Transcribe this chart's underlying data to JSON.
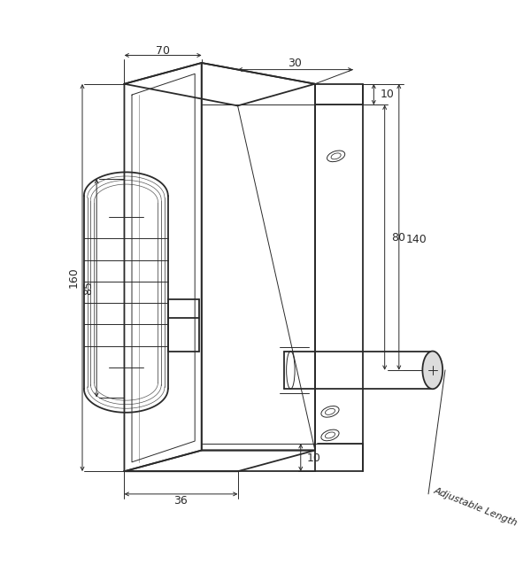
{
  "bg_color": "#ffffff",
  "line_color": "#2a2a2a",
  "dim_color": "#2a2a2a",
  "fig_width": 6.0,
  "fig_height": 6.64,
  "dpi": 100,
  "lw_main": 1.3,
  "lw_thin": 0.7,
  "lw_dim": 0.7,
  "labels": {
    "70": "70",
    "30": "30",
    "10t": "10",
    "80": "80",
    "140": "140",
    "160": "160",
    "85": "85",
    "36": "36",
    "10b": "10",
    "adj": "Adjustable Length"
  }
}
